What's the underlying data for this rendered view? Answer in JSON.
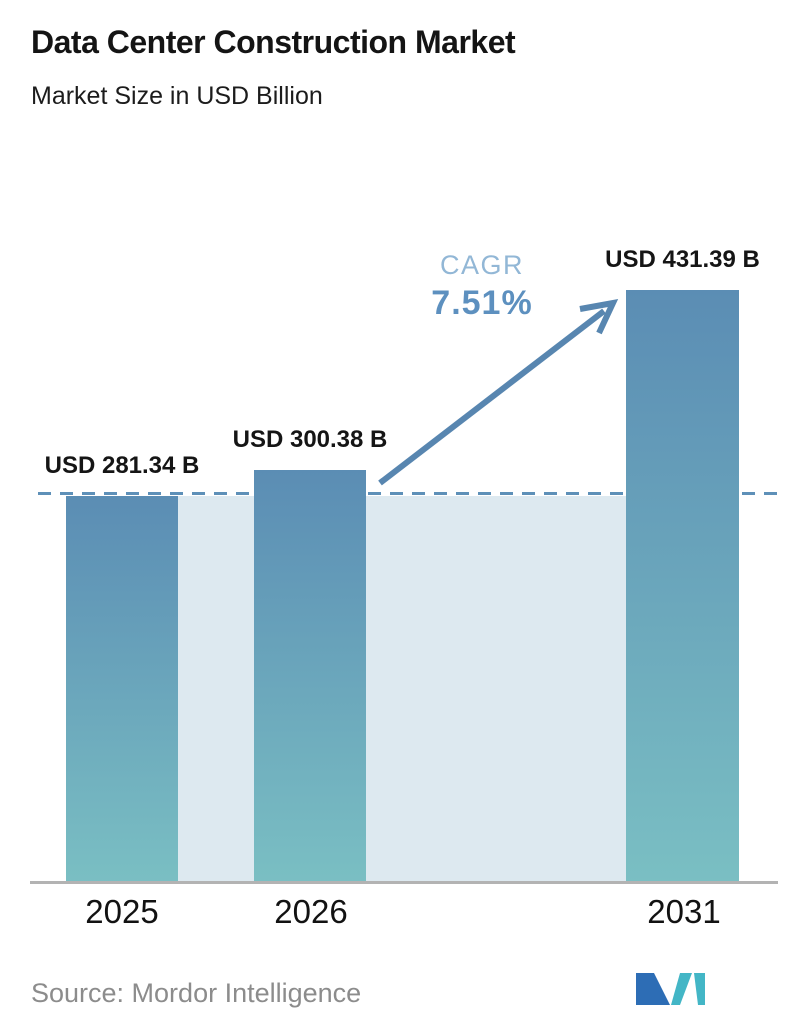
{
  "header": {
    "title": "Data Center Construction Market",
    "subtitle": "Market Size in USD Billion"
  },
  "chart_data": {
    "type": "bar",
    "title": "Data Center Construction Market",
    "subtitle": "Market Size in USD Billion",
    "categories": [
      "2025",
      "2026",
      "2031"
    ],
    "values": [
      281.34,
      300.38,
      431.39
    ],
    "value_labels": [
      "USD 281.34 B",
      "USD 300.38 B",
      "USD 431.39 B"
    ],
    "unit": "USD Billion",
    "ylim": [
      0,
      431.39
    ],
    "grid": false,
    "legend": "none",
    "baseline": {
      "value": 281.34,
      "style": "dashed"
    },
    "annotations": {
      "cagr_label": "CAGR",
      "cagr_value": "7.51%",
      "arrow": "diagonal arrow from top of 2026 bar pointing to top of 2031 bar"
    },
    "colors": {
      "bar_top": "#5b8db4",
      "bar_bottom": "#7abfc3",
      "band": "#dde9f0",
      "dashed_line": "#5e90b8",
      "arrow": "#5886b0",
      "cagr_label": "#92b7d6",
      "cagr_value": "#5d90bf",
      "axis": "#b3b3b3",
      "source_text": "#8c8c8c",
      "logo_blue": "#2d6db5",
      "logo_teal": "#43b6c6"
    }
  },
  "footer": {
    "source_label": "Source: Mordor Intelligence",
    "logo_name": "mordor-intelligence-logo"
  }
}
